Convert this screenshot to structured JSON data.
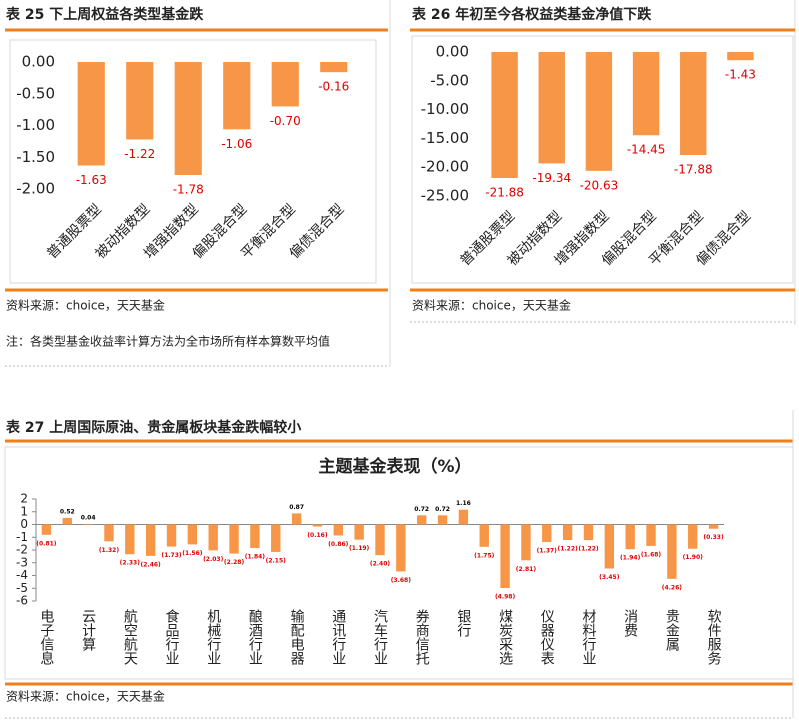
{
  "chart_data": [
    {
      "type": "bar",
      "caption": "表 25  下上周权益各类型基金跌",
      "categories": [
        "普通股票型",
        "被动指数型",
        "增强指数型",
        "偏股混合型",
        "平衡混合型",
        "偏债混合型"
      ],
      "values": [
        -1.63,
        -1.22,
        -1.78,
        -1.06,
        -0.7,
        -0.16
      ],
      "value_labels": [
        "-1.63",
        "-1.22",
        "-1.78",
        "-1.06",
        "-0.70",
        "-0.16"
      ],
      "color": "#f79646",
      "label_color": "#e00000",
      "ylim": [
        -2,
        0
      ],
      "yticks": [
        {
          "value": 0,
          "label": "0.00"
        },
        {
          "value": -0.5,
          "label": "-0.50"
        },
        {
          "value": -1,
          "label": "-1.00"
        },
        {
          "value": -1.5,
          "label": "-1.50"
        },
        {
          "value": -2,
          "label": "-2.00"
        }
      ],
      "source": "资料来源：choice，天天基金",
      "note": "注：各类型基金收益率计算方法为全市场所有样本算数平均值"
    },
    {
      "type": "bar",
      "caption": "表 26  年初至今各权益类基金净值下跌",
      "categories": [
        "普通股票型",
        "被动指数型",
        "增强指数型",
        "偏股混合型",
        "平衡混合型",
        "偏债混合型"
      ],
      "values": [
        -21.88,
        -19.34,
        -20.63,
        -14.45,
        -17.88,
        -1.43
      ],
      "value_labels": [
        "-21.88",
        "-19.34",
        "-20.63",
        "-14.45",
        "-17.88",
        "-1.43"
      ],
      "color": "#f79646",
      "label_color": "#e00000",
      "ylim": [
        -25,
        0
      ],
      "yticks": [
        {
          "value": 0,
          "label": "0.00"
        },
        {
          "value": -5,
          "label": "-5.00"
        },
        {
          "value": -10,
          "label": "-10.00"
        },
        {
          "value": -15,
          "label": "-15.00"
        },
        {
          "value": -20,
          "label": "-20.00"
        },
        {
          "value": -25,
          "label": "-25.00"
        }
      ],
      "source": "资料来源：choice，天天基金"
    },
    {
      "type": "bar",
      "caption": "表 27  上周国际原油、贵金属板块基金跌幅较小",
      "title": "主题基金表现（%）",
      "categories": [
        "电子信息",
        null,
        "云计算",
        null,
        "航空航天",
        null,
        "食品行业",
        null,
        "机械行业",
        null,
        "酿酒行业",
        null,
        "输配电器",
        null,
        "通讯行业",
        null,
        "汽车行业",
        null,
        "券商信托",
        null,
        "银行",
        null,
        "煤炭采选",
        null,
        "仪器仪表",
        null,
        "材料行业",
        null,
        "消费",
        null,
        "贵金属",
        null,
        "软件服务"
      ],
      "values": [
        -0.81,
        0.52,
        0.04,
        -1.32,
        -2.33,
        -2.46,
        -1.73,
        -1.56,
        -2.03,
        -2.28,
        -1.84,
        -2.15,
        0.87,
        -0.16,
        -0.86,
        -1.19,
        -2.4,
        -3.68,
        0.72,
        0.72,
        1.16,
        -1.75,
        -4.98,
        -2.81,
        -1.37,
        -1.22,
        -1.22,
        -3.45,
        -1.94,
        -1.68,
        -4.26,
        -1.9,
        -0.33
      ],
      "value_labels": [
        "(0.81)",
        "0.52",
        "0.04",
        "(1.32)",
        "(2.33)",
        "(2.46)",
        "(1.73)",
        "(1.56)",
        "(2.03)",
        "(2.28)",
        "(1.84)",
        "(2.15)",
        "0.87",
        "(0.16)",
        "(0.86)",
        "(1.19)",
        "(2.40)",
        "(3.68)",
        "0.72",
        "0.72",
        "1.16",
        "(1.75)",
        "(4.98)",
        "(2.81)",
        "(1.37)",
        "(1.22)",
        "(1.22)",
        "(3.45)",
        "(1.94)",
        "(1.68)",
        "(4.26)",
        "(1.90)",
        "(0.33)"
      ],
      "color": "#f79646",
      "label_color": "#e00000",
      "ylim": [
        -6,
        2
      ],
      "yticks": [
        2,
        1,
        0,
        -1,
        -2,
        -3,
        -4,
        -5,
        -6
      ],
      "source": "资料来源：choice，天天基金"
    }
  ]
}
